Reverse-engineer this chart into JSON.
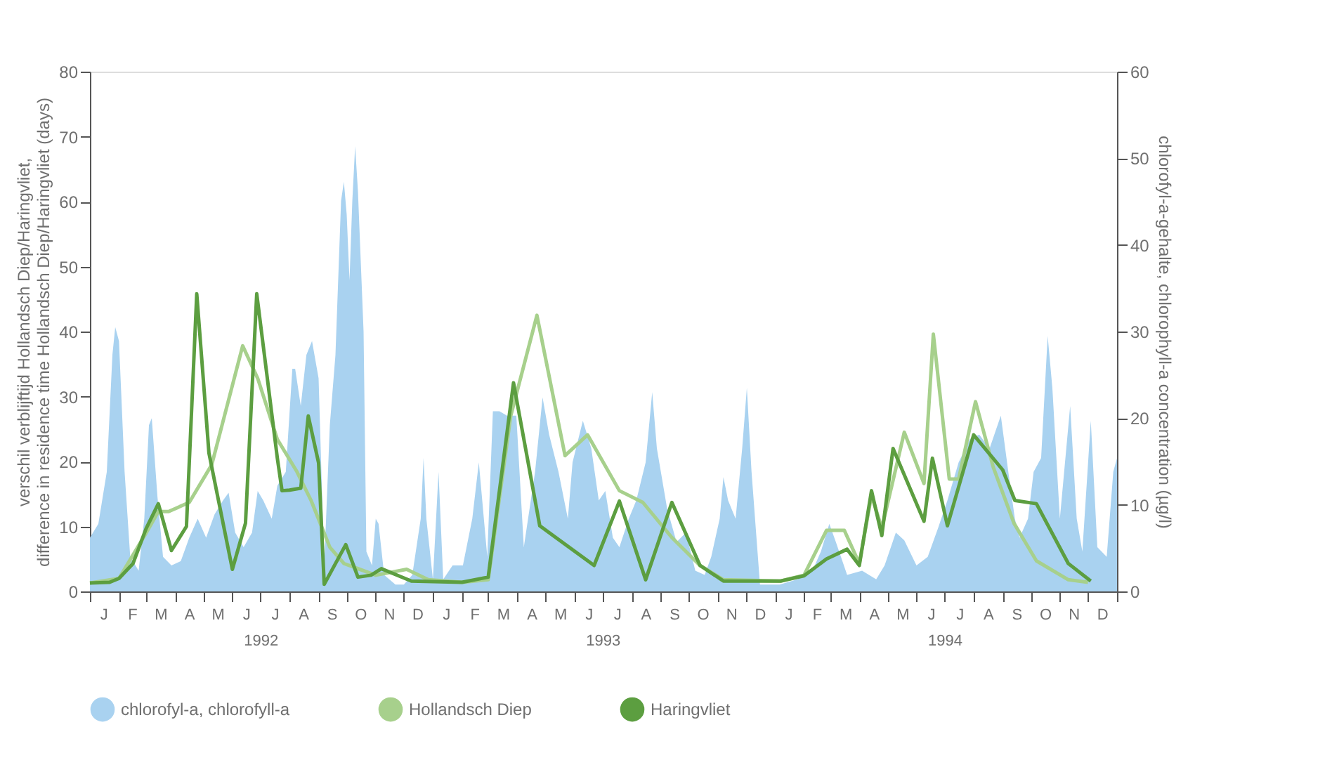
{
  "chart_data": {
    "type": "line",
    "ylabel": "verschil verblijftijd Hollandsch Diep/Haringvliet,\ndifference in residence time Hollandsch Diep/Haringvliet (days)",
    "y2label": "chlorofyl-a-gehalte, chlorophyll-a concentration (µg/l)",
    "xlim": [
      "1992-01-01",
      "1995-01-01"
    ],
    "xticks": [
      {
        "value": "1992-01-01",
        "label": null
      },
      {
        "value": "1992-02-01",
        "label": null
      },
      {
        "value": "1992-03-01",
        "label": null
      },
      {
        "value": "1992-04-01",
        "label": null
      },
      {
        "value": "1992-05-01",
        "label": null
      },
      {
        "value": "1992-06-01",
        "label": null
      },
      {
        "value": "1992-07-01",
        "label": "1992"
      },
      {
        "value": "1992-08-01",
        "label": null
      },
      {
        "value": "1992-09-01",
        "label": null
      },
      {
        "value": "1992-10-01",
        "label": null
      },
      {
        "value": "1992-11-01",
        "label": null
      },
      {
        "value": "1992-12-01",
        "label": null
      },
      {
        "value": "1993-01-01",
        "label": null
      },
      {
        "value": "1993-02-01",
        "label": null
      },
      {
        "value": "1993-03-01",
        "label": null
      },
      {
        "value": "1993-04-01",
        "label": null
      },
      {
        "value": "1993-05-01",
        "label": null
      },
      {
        "value": "1993-06-01",
        "label": null
      },
      {
        "value": "1993-07-01",
        "label": "1993"
      },
      {
        "value": "1993-08-01",
        "label": null
      },
      {
        "value": "1993-09-01",
        "label": null
      },
      {
        "value": "1993-10-01",
        "label": null
      },
      {
        "value": "1993-11-01",
        "label": null
      },
      {
        "value": "1993-12-01",
        "label": null
      },
      {
        "value": "1994-01-01",
        "label": null
      },
      {
        "value": "1994-02-01",
        "label": null
      },
      {
        "value": "1994-03-01",
        "label": null
      },
      {
        "value": "1994-04-01",
        "label": null
      },
      {
        "value": "1994-05-01",
        "label": null
      },
      {
        "value": "1994-06-01",
        "label": null
      },
      {
        "value": "1994-07-01",
        "label": "1994"
      },
      {
        "value": "1994-08-01",
        "label": null
      },
      {
        "value": "1994-09-01",
        "label": null
      },
      {
        "value": "1994-10-01",
        "label": null
      },
      {
        "value": "1994-11-01",
        "label": null
      },
      {
        "value": "1994-12-01",
        "label": null
      },
      {
        "value": "1995-01-01",
        "label": null
      }
    ],
    "annotations": [
      "J",
      "F",
      "M",
      "A",
      "M",
      "J",
      "J",
      "A",
      "S",
      "O",
      "N",
      "D",
      "J",
      "F",
      "M",
      "A",
      "M",
      "J",
      "J",
      "A",
      "S",
      "O",
      "N",
      "D",
      "J",
      "F",
      "M",
      "A",
      "M",
      "J",
      "J",
      "A",
      "S",
      "O",
      "N",
      "D"
    ],
    "ylim": [
      0,
      80
    ],
    "yticks": [
      0,
      10,
      20,
      30,
      40,
      50,
      60,
      70,
      80
    ],
    "y2lim": [
      0,
      60
    ],
    "y2ticks": [
      0,
      10,
      20,
      30,
      40,
      50,
      60
    ],
    "grid": false,
    "legend": "bottom",
    "line_style": "solid",
    "series": [
      {
        "name": "chlorofyl-a, chlorofyll-a",
        "type": "area",
        "axis": "y2",
        "color": "#a9d2f0",
        "x": [
          "1992-01-01",
          "1992-01-10",
          "1992-01-19",
          "1992-01-25",
          "1992-01-28",
          "1992-02-01",
          "1992-02-07",
          "1992-02-13",
          "1992-02-22",
          "1992-02-28",
          "1992-03-04",
          "1992-03-07",
          "1992-03-13",
          "1992-03-19",
          "1992-03-28",
          "1992-04-07",
          "1992-04-16",
          "1992-04-25",
          "1992-05-04",
          "1992-05-13",
          "1992-05-22",
          "1992-05-28",
          "1992-06-04",
          "1992-06-13",
          "1992-06-22",
          "1992-06-28",
          "1992-07-04",
          "1992-07-13",
          "1992-07-19",
          "1992-07-28",
          "1992-08-04",
          "1992-08-07",
          "1992-08-13",
          "1992-08-19",
          "1992-08-25",
          "1992-09-01",
          "1992-09-07",
          "1992-09-13",
          "1992-09-19",
          "1992-09-25",
          "1992-09-28",
          "1992-10-01",
          "1992-10-04",
          "1992-10-07",
          "1992-10-10",
          "1992-10-13",
          "1992-10-19",
          "1992-10-22",
          "1992-10-28",
          "1992-11-01",
          "1992-11-04",
          "1992-11-10",
          "1992-11-22",
          "1992-12-01",
          "1992-12-10",
          "1992-12-19",
          "1992-12-22",
          "1992-12-25",
          "1993-01-01",
          "1993-01-07",
          "1993-01-12",
          "1993-01-22",
          "1993-02-02",
          "1993-02-12",
          "1993-02-19",
          "1993-02-28",
          "1993-03-06",
          "1993-03-13",
          "1993-03-21",
          "1993-03-31",
          "1993-04-08",
          "1993-04-20",
          "1993-04-28",
          "1993-05-05",
          "1993-05-15",
          "1993-05-25",
          "1993-05-30",
          "1993-06-10",
          "1993-06-19",
          "1993-06-27",
          "1993-07-04",
          "1993-07-12",
          "1993-07-19",
          "1993-07-29",
          "1993-08-06",
          "1993-08-16",
          "1993-08-23",
          "1993-08-28",
          "1993-09-08",
          "1993-09-18",
          "1993-09-28",
          "1993-10-08",
          "1993-10-18",
          "1993-10-25",
          "1993-11-03",
          "1993-11-07",
          "1993-11-12",
          "1993-11-20",
          "1993-11-27",
          "1993-12-02",
          "1993-12-07",
          "1993-12-16",
          "1994-01-06",
          "1994-01-25",
          "1994-02-10",
          "1994-02-19",
          "1994-02-28",
          "1994-03-07",
          "1994-03-19",
          "1994-04-04",
          "1994-04-19",
          "1994-04-28",
          "1994-05-10",
          "1994-05-19",
          "1994-06-01",
          "1994-06-13",
          "1994-06-24",
          "1994-07-04",
          "1994-07-16",
          "1994-07-28",
          "1994-08-07",
          "1994-08-18",
          "1994-08-30",
          "1994-09-07",
          "1994-09-14",
          "1994-09-19",
          "1994-09-28",
          "1994-10-04",
          "1994-10-12",
          "1994-10-19",
          "1994-10-24",
          "1994-11-01",
          "1994-11-12",
          "1994-11-19",
          "1994-11-25",
          "1994-12-04",
          "1994-12-11",
          "1994-12-21",
          "1994-12-28",
          "1995-01-01"
        ],
        "values": [
          6.2,
          7.8,
          13.8,
          27.3,
          30.5,
          28.9,
          13.8,
          4,
          2.4,
          8.4,
          19.2,
          20,
          11,
          4,
          3,
          3.5,
          6.2,
          8.4,
          6.2,
          8.9,
          10.5,
          11.4,
          6.8,
          5.1,
          6.8,
          11.6,
          10.5,
          8.4,
          12.2,
          13.8,
          25.7,
          25.7,
          21.4,
          27.3,
          28.9,
          24.6,
          3,
          19.2,
          27.3,
          45.1,
          47.3,
          43.5,
          35.9,
          45.1,
          51.4,
          46.2,
          30,
          4.6,
          3,
          8.4,
          7.8,
          1.9,
          0.8,
          0.8,
          1.9,
          8.4,
          15.4,
          8.4,
          1.4,
          13.8,
          1.4,
          3,
          3,
          8.4,
          14.9,
          4,
          20.8,
          20.8,
          20.3,
          20.3,
          5.1,
          13.8,
          22.4,
          18.1,
          13.8,
          8.4,
          14.9,
          19.7,
          16.5,
          10.5,
          11.6,
          6.2,
          5.1,
          8.4,
          10.5,
          14.9,
          23,
          16.5,
          9.5,
          5.7,
          6.8,
          2.4,
          1.9,
          4,
          8.4,
          13.2,
          10.5,
          8.4,
          16.5,
          23.5,
          13.8,
          0.8,
          0.8,
          1.4,
          2.4,
          4.6,
          7.8,
          5.7,
          1.9,
          2.4,
          1.4,
          3,
          6.8,
          5.9,
          3,
          4,
          7.3,
          10.5,
          14.9,
          17.6,
          18.1,
          16.5,
          20.3,
          13.8,
          8.4,
          6.2,
          8.4,
          13.8,
          15.4,
          29.5,
          23.5,
          8.4,
          21.4,
          8.4,
          4.6,
          19.7,
          5.1,
          4,
          13.8,
          15.4
        ]
      },
      {
        "name": "Hollandsch Diep",
        "type": "line",
        "color": "#a7d08c",
        "x": [
          "1992-01-01",
          "1992-02-01",
          "1992-03-01",
          "1992-03-14",
          "1992-03-25",
          "1992-04-16",
          "1992-05-10",
          "1992-06-12",
          "1992-06-28",
          "1992-07-19",
          "1992-08-09",
          "1992-08-24",
          "1992-09-13",
          "1992-09-28",
          "1992-11-01",
          "1992-12-04",
          "1992-12-27",
          "1993-02-01",
          "1993-03-01",
          "1993-03-25",
          "1993-04-22",
          "1993-05-22",
          "1993-06-15",
          "1993-07-19",
          "1993-08-13",
          "1993-09-13",
          "1993-10-13",
          "1993-11-07",
          "1994-01-07",
          "1994-02-01",
          "1994-02-25",
          "1994-03-16",
          "1994-04-01",
          "1994-04-14",
          "1994-04-25",
          "1994-05-19",
          "1994-06-09",
          "1994-06-19",
          "1994-07-06",
          "1994-07-16",
          "1994-08-03",
          "1994-08-22",
          "1994-09-13",
          "1994-10-07",
          "1994-11-10",
          "1994-12-01"
        ],
        "values": [
          1.3,
          2,
          9,
          12.3,
          12.3,
          13.7,
          19.5,
          37.8,
          32.8,
          23.4,
          18.4,
          14,
          6.8,
          4.3,
          2.5,
          3.4,
          1.8,
          1.4,
          1.8,
          27,
          42.5,
          20.9,
          24.1,
          15.5,
          13.7,
          8.3,
          4,
          1.8,
          1.6,
          2.5,
          9.4,
          9.4,
          4.3,
          14.8,
          9.7,
          24.5,
          16.6,
          39.6,
          17.3,
          17.3,
          29.2,
          19.1,
          10.5,
          4.7,
          1.8,
          1.4
        ]
      },
      {
        "name": "Haringvliet",
        "type": "line",
        "color": "#5c9e40",
        "x": [
          "1992-01-01",
          "1992-01-22",
          "1992-02-01",
          "1992-02-16",
          "1992-03-01",
          "1992-03-14",
          "1992-03-28",
          "1992-04-13",
          "1992-04-24",
          "1992-05-07",
          "1992-06-01",
          "1992-06-15",
          "1992-06-27",
          "1992-07-19",
          "1992-07-24",
          "1992-08-01",
          "1992-08-13",
          "1992-08-21",
          "1992-09-01",
          "1992-09-07",
          "1992-09-30",
          "1992-10-13",
          "1992-10-27",
          "1992-11-07",
          "1992-12-09",
          "1993-02-01",
          "1993-03-01",
          "1993-03-28",
          "1993-04-25",
          "1993-06-22",
          "1993-07-19",
          "1993-08-16",
          "1993-09-13",
          "1993-10-13",
          "1993-11-07",
          "1994-01-07",
          "1994-02-01",
          "1994-02-25",
          "1994-03-19",
          "1994-04-01",
          "1994-04-14",
          "1994-04-25",
          "1994-05-07",
          "1994-06-09",
          "1994-06-18",
          "1994-07-04",
          "1994-08-01",
          "1994-09-01",
          "1994-09-14",
          "1994-10-07",
          "1994-11-10",
          "1994-12-04"
        ],
        "values": [
          1.3,
          1.4,
          2,
          4.3,
          9.7,
          13.5,
          6.3,
          10,
          45.8,
          21.3,
          3.4,
          10.5,
          45.8,
          20.5,
          15.5,
          15.6,
          15.9,
          27,
          19.8,
          1.1,
          7.2,
          2.2,
          2.5,
          3.5,
          1.6,
          1.4,
          2.2,
          32.1,
          10.1,
          4,
          13.9,
          1.8,
          13.7,
          4,
          1.6,
          1.6,
          2.4,
          5,
          6.5,
          4,
          15.5,
          8.6,
          22,
          10.8,
          20.5,
          10.1,
          24.1,
          18.7,
          14,
          13.5,
          4.3,
          1.6
        ]
      }
    ]
  }
}
